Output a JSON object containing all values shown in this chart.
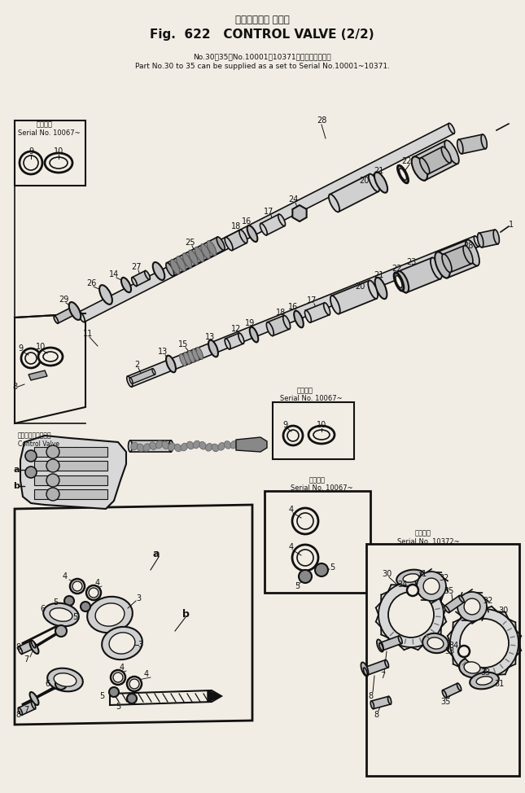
{
  "title_jp": "コントロール バルブ",
  "title_en": "Fig.  622   CONTROL VALVE (2/2)",
  "note_line1": "No.30～35はNo.10001～10371に適応可能です．",
  "note_line2": "Part No.30 to 35 can be supplied as a set to Serial No.10001~10371.",
  "bg_color": "#f2ede4",
  "lc": "#111111",
  "fig_width": 6.45,
  "fig_height": 9.74,
  "dpi": 100
}
